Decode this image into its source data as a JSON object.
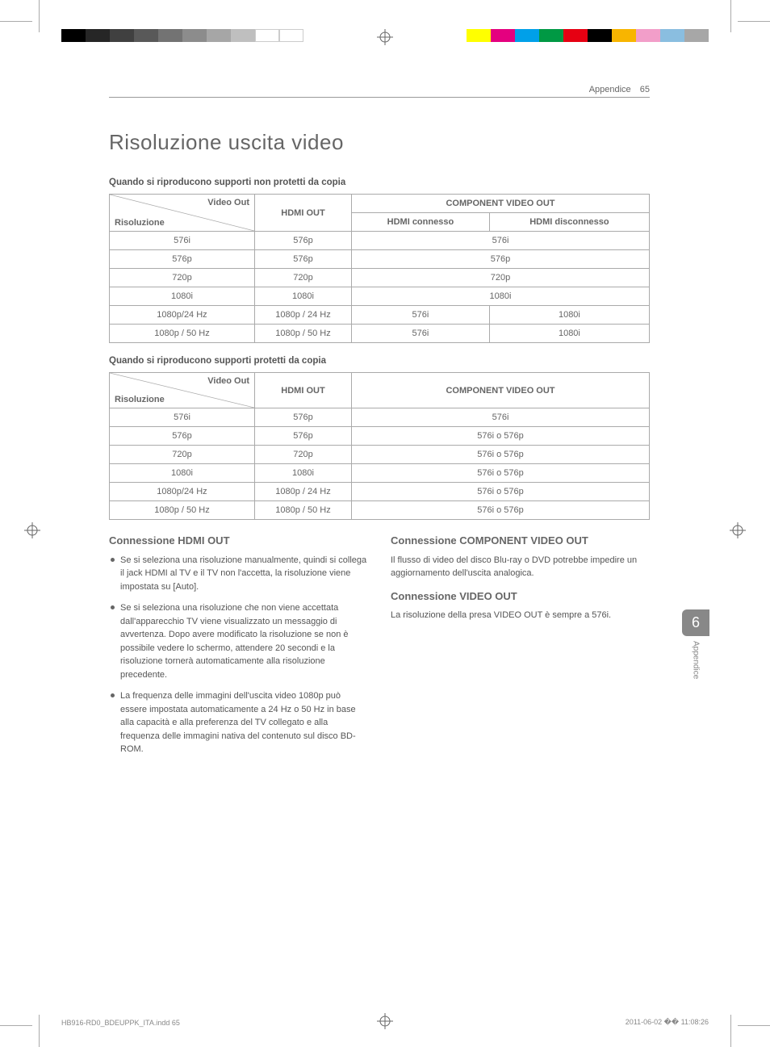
{
  "header": {
    "section": "Appendice",
    "page_num": "65"
  },
  "title": "Risoluzione uscita video",
  "table1_caption": "Quando si riproducono supporti non protetti da copia",
  "table1": {
    "diag_top": "Video Out",
    "diag_bot": "Risoluzione",
    "hdmi_out": "HDMI OUT",
    "comp_out": "COMPONENT VIDEO OUT",
    "hdmi_conn": "HDMI connesso",
    "hdmi_disc": "HDMI disconnesso",
    "rows": [
      {
        "res": "576i",
        "hdmi": "576p",
        "c1": "576i",
        "c2": ""
      },
      {
        "res": "576p",
        "hdmi": "576p",
        "c1": "576p",
        "c2": ""
      },
      {
        "res": "720p",
        "hdmi": "720p",
        "c1": "720p",
        "c2": ""
      },
      {
        "res": "1080i",
        "hdmi": "1080i",
        "c1": "1080i",
        "c2": ""
      },
      {
        "res": "1080p/24 Hz",
        "hdmi": "1080p / 24 Hz",
        "c1": "576i",
        "c2": "1080i"
      },
      {
        "res": "1080p / 50 Hz",
        "hdmi": "1080p / 50 Hz",
        "c1": "576i",
        "c2": "1080i"
      }
    ]
  },
  "table2_caption": "Quando si riproducono supporti protetti da copia",
  "table2": {
    "diag_top": "Video Out",
    "diag_bot": "Risoluzione",
    "hdmi_out": "HDMI OUT",
    "comp_out": "COMPONENT VIDEO OUT",
    "rows": [
      {
        "res": "576i",
        "hdmi": "576p",
        "c": "576i"
      },
      {
        "res": "576p",
        "hdmi": "576p",
        "c": "576i o 576p"
      },
      {
        "res": "720p",
        "hdmi": "720p",
        "c": "576i o 576p"
      },
      {
        "res": "1080i",
        "hdmi": "1080i",
        "c": "576i o 576p"
      },
      {
        "res": "1080p/24 Hz",
        "hdmi": "1080p / 24 Hz",
        "c": "576i o 576p"
      },
      {
        "res": "1080p / 50 Hz",
        "hdmi": "1080p / 50 Hz",
        "c": "576i o 576p"
      }
    ]
  },
  "left_col": {
    "heading": "Connessione HDMI OUT",
    "b1": "Se si seleziona una risoluzione manualmente, quindi si collega il jack HDMI al TV e il TV non l'accetta, la risoluzione viene impostata su [Auto].",
    "b2": "Se si seleziona una risoluzione che non viene accettata dall'apparecchio TV viene visualizzato un messaggio di avvertenza. Dopo avere modificato la risoluzione se non è possibile vedere lo schermo, attendere 20 secondi e la risoluzione tornerà automaticamente alla risoluzione precedente.",
    "b3": "La frequenza delle immagini dell'uscita video 1080p può essere impostata automaticamente a 24 Hz o 50 Hz in base alla capacità e alla preferenza del TV collegato e alla frequenza delle immagini nativa del contenuto sul disco BD-ROM."
  },
  "right_col": {
    "h1": "Connessione COMPONENT VIDEO OUT",
    "p1": "Il flusso di video del disco Blu-ray o DVD potrebbe impedire un aggiornamento dell'uscita analogica.",
    "h2": "Connessione VIDEO OUT",
    "p2": "La risoluzione della presa VIDEO OUT è sempre a 576i."
  },
  "side": {
    "num": "6",
    "label": "Appendice"
  },
  "footer": {
    "file": "HB916-RD0_BDEUPPK_ITA.indd   65",
    "time": "2011-06-02   �� 11:08:26"
  },
  "print": {
    "left_bar": [
      "#000000",
      "#262626",
      "#404040",
      "#595959",
      "#737373",
      "#8c8c8c",
      "#a6a6a6",
      "#bfbfbf",
      "#ffffff",
      "#ffffff"
    ],
    "right_bar": [
      "#ffff00",
      "#e4007f",
      "#00a0e9",
      "#009944",
      "#e60012",
      "#000000",
      "#f8b500",
      "#f29ec9",
      "#8abee0",
      "#a7a7a7"
    ]
  }
}
